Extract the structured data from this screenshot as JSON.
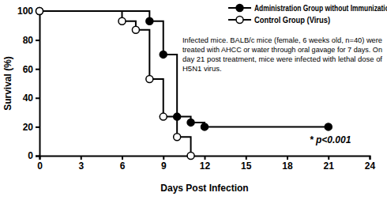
{
  "chart_data": {
    "type": "line",
    "xlabel": "Days Post Infection",
    "ylabel": "Survival (%)",
    "xlim": [
      0,
      24
    ],
    "xticks": [
      0,
      3,
      6,
      9,
      12,
      15,
      18,
      21,
      24
    ],
    "ylim": [
      0,
      100
    ],
    "yticks": [
      0,
      20,
      40,
      60,
      80,
      100
    ],
    "legend": "upper right",
    "grid": false,
    "series": [
      {
        "name": "Administration Group without Immunization",
        "color": "#000000",
        "marker": "circle",
        "line_style": "step",
        "x": [
          0,
          8,
          9,
          10,
          11,
          12,
          21
        ],
        "values": [
          100,
          93,
          70,
          27,
          23,
          20,
          20
        ]
      },
      {
        "name": "Control Group (Virus)",
        "color": "#000000",
        "marker": "circle-open",
        "line_style": "step",
        "x": [
          0,
          6,
          7,
          8,
          9,
          10,
          11
        ],
        "values": [
          100,
          93,
          87,
          53,
          27,
          13,
          0
        ]
      }
    ],
    "annotations": [
      {
        "text": [
          "Infected mice. BALB/c mice (female, 6 weeks old, n=40) were",
          "treated with AHCC or water through oral gavage for 7 days. On",
          "day 21 post treatment, mice were infected with lethal dose of",
          "H5N1 virus."
        ]
      },
      {
        "text": "* p<0.001"
      }
    ]
  }
}
